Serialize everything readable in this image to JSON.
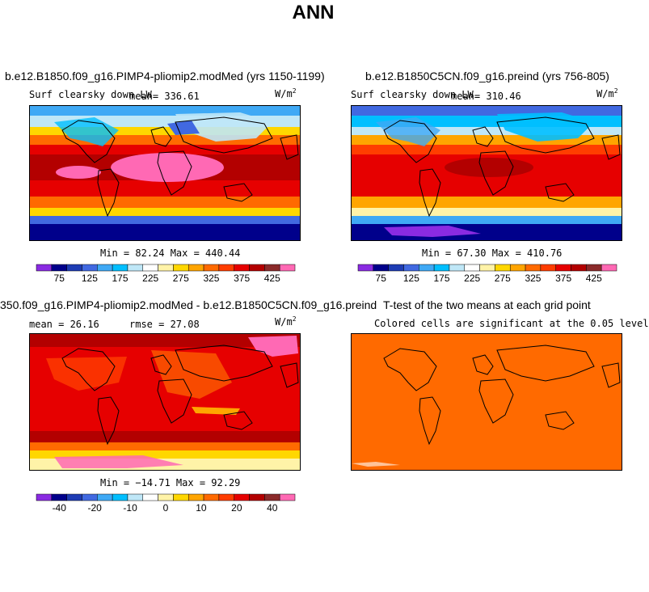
{
  "page": {
    "title": "ANN"
  },
  "colors": {
    "seq": [
      "#8a2be2",
      "#00008b",
      "#1e3cb4",
      "#4169e1",
      "#3fa9f5",
      "#00bfff",
      "#bfe7f7",
      "#ffffff",
      "#fff3a8",
      "#ffd700",
      "#ffa500",
      "#ff6a00",
      "#ff3d00",
      "#e60000",
      "#b30000",
      "#8b2a2a",
      "#ff69b4"
    ],
    "ttest": "#ff6a00"
  },
  "chart_data": [
    {
      "type": "heatmap",
      "panel": "top-left",
      "title": "b.e12.B1850.f09_g16.PIMP4-pliomip2.modMed (yrs 1150-1199)",
      "variable": "Surf clearsky down LW",
      "units": "W/m",
      "units_sup": "2",
      "mean_text": "mean= 336.61",
      "mean": 336.61,
      "minmax_text": "Min =  82.24 Max = 440.44",
      "min": 82.24,
      "max": 440.44,
      "colorbar_ticks": [
        "75",
        "125",
        "175",
        "225",
        "275",
        "325",
        "375",
        "425"
      ],
      "colorbar_levels": 12
    },
    {
      "type": "heatmap",
      "panel": "top-right",
      "title": "b.e12.B1850C5CN.f09_g16.preind (yrs 756-805)",
      "variable": "Surf clearsky down LW",
      "units": "W/m",
      "units_sup": "2",
      "mean_text": "mean= 310.46",
      "mean": 310.46,
      "minmax_text": "Min =  67.30 Max = 410.76",
      "min": 67.3,
      "max": 410.76,
      "colorbar_ticks": [
        "75",
        "125",
        "175",
        "225",
        "275",
        "325",
        "375",
        "425"
      ],
      "colorbar_levels": 12
    },
    {
      "type": "heatmap",
      "panel": "bottom-left",
      "title": "350.f09_g16.PIMP4-pliomip2.modMed - b.e12.B1850C5CN.f09_g16.preind",
      "mean_text": "mean =  26.16",
      "mean": 26.16,
      "rmse_text": "rmse =  27.08",
      "rmse": 27.08,
      "units": "W/m",
      "units_sup": "2",
      "minmax_text": "Min = −14.71 Max =  92.29",
      "min": -14.71,
      "max": 92.29,
      "colorbar_ticks": [
        "-40",
        "-20",
        "-10",
        "0",
        "10",
        "20",
        "40"
      ],
      "colorbar_levels": 14
    },
    {
      "type": "heatmap",
      "panel": "bottom-right",
      "title": "T-test of the two means at each grid point",
      "subtitle": "Colored cells are significant at the 0.05 level"
    }
  ]
}
